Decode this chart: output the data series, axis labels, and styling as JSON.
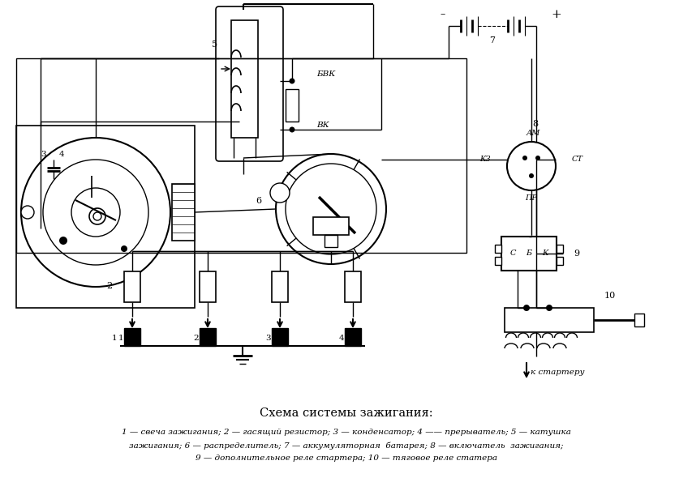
{
  "title": "Схема системы зажигания:",
  "legend_line1": "1 — свеча зажигания; 2 — гасящий резистор; 3 — конденсатор; 4 —— прерыватель; 5 — катушка",
  "legend_line2": "зажигания; 6 — распределитель; 7 — аккумуляторная  батарея; 8 — включатель  зажигания;",
  "legend_line3": "9 — дополнительное реле стартера; 10 — тяговое реле статера",
  "bg_color": "#ffffff",
  "line_color": "#000000",
  "label_BVK": "БВК",
  "label_VK": "ВК",
  "label_K3": "КЗ",
  "label_AM": "АМ",
  "label_ST": "СТ",
  "label_PR": "ПР",
  "label_C": "С",
  "label_B": "Б",
  "label_K": "К",
  "label_k_starter": "к стартеру",
  "label_plus": "+",
  "label_minus": "–"
}
